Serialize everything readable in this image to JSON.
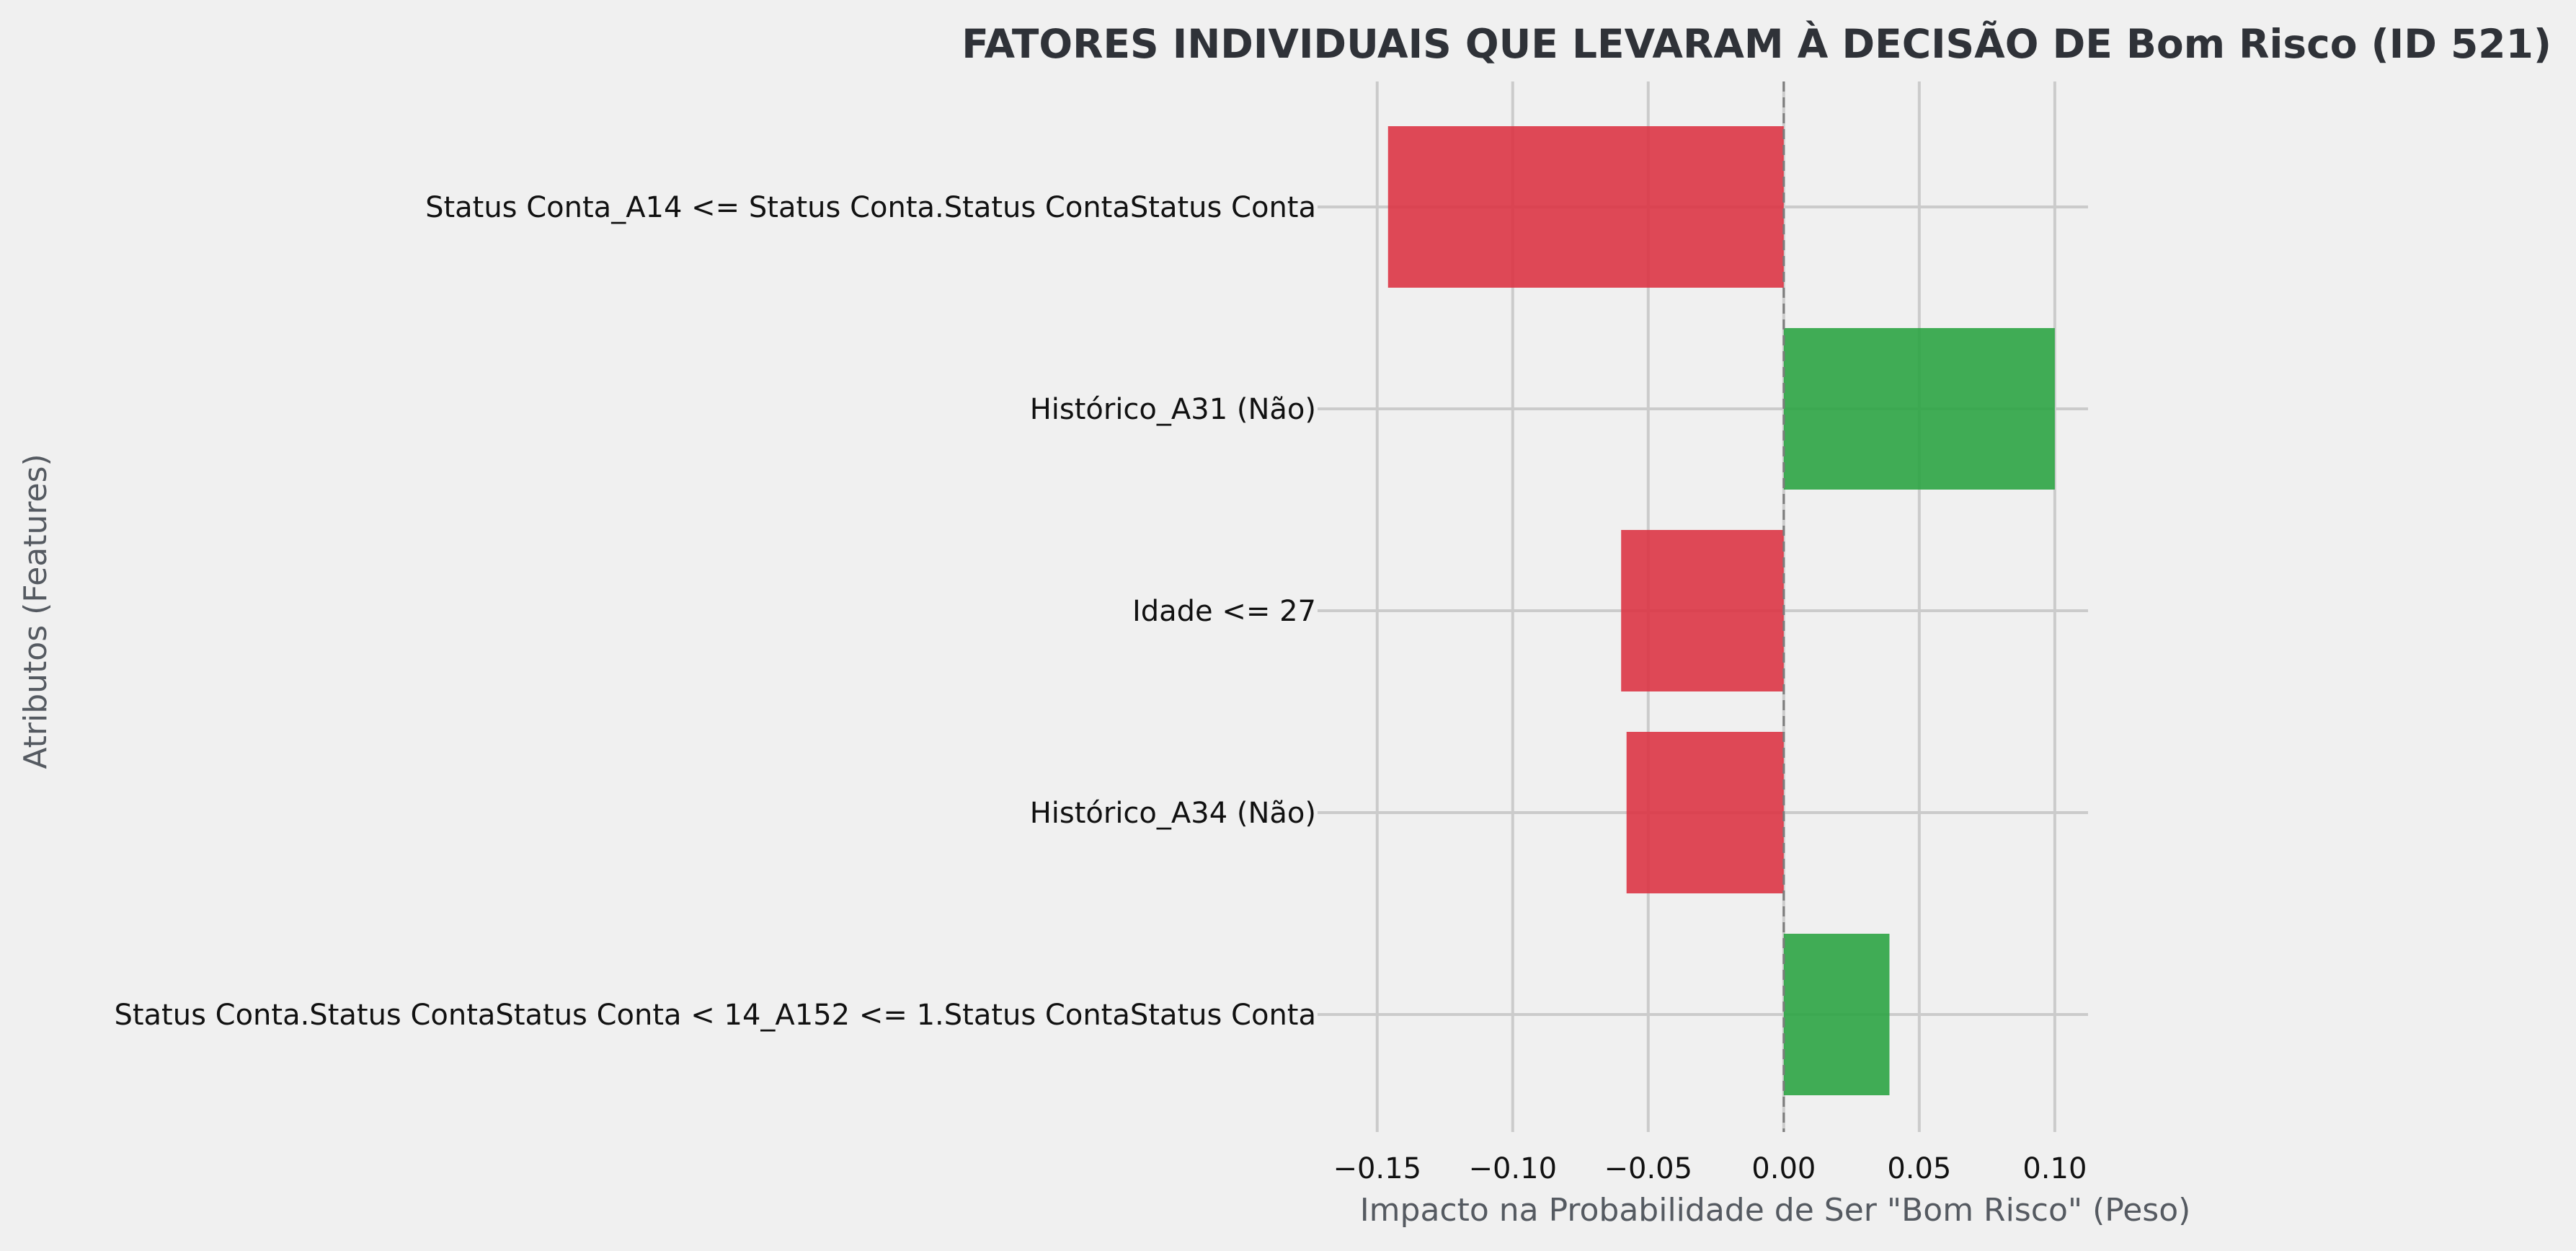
{
  "chart_data": {
    "type": "bar",
    "orientation": "horizontal",
    "title": "FATORES INDIVIDUAIS QUE LEVARAM À DECISÃO DE Bom Risco (ID 521)",
    "xlabel": "Impacto na Probabilidade de Ser \"Bom Risco\" (Peso)",
    "ylabel": "Atributos (Features)",
    "xlim": [
      -0.172,
      0.112
    ],
    "xticks": [
      -0.15,
      -0.1,
      -0.05,
      0.0,
      0.05,
      0.1
    ],
    "xtick_labels": [
      "−0.15",
      "−0.10",
      "−0.05",
      "0.00",
      "0.05",
      "0.10"
    ],
    "grid": true,
    "zero_line": "dashed",
    "categories": [
      "Status Conta_A14 <= Status Conta.Status ContaStatus Conta",
      "Histórico_A31 (Não)",
      "Idade <= 27",
      "Histórico_A34 (Não)",
      "Status Conta.Status ContaStatus Conta < 14_A152 <= 1.Status ContaStatus Conta"
    ],
    "values": [
      -0.146,
      0.1,
      -0.06,
      -0.058,
      0.039
    ],
    "colors": {
      "positive": "#2ca444",
      "negative": "#dc3545",
      "background": "#f0f0f0",
      "grid": "#cbcbcb"
    }
  }
}
